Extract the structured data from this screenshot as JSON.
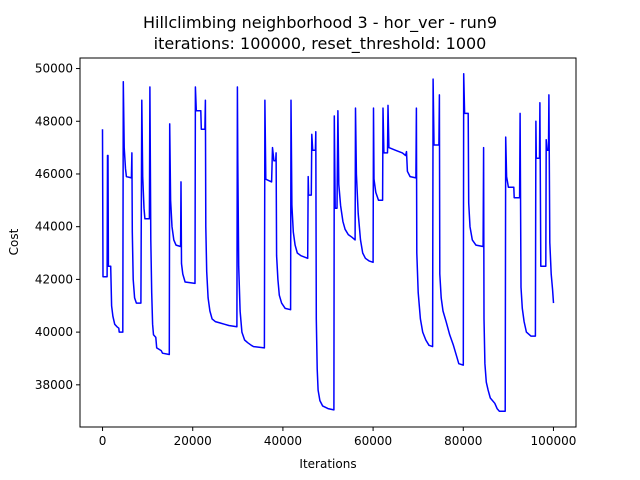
{
  "chart_data": {
    "type": "line",
    "title_line1": "Hillclimbing neighborhood 3 - hor_ver - run9",
    "title_line2": "iterations: 100000, reset_threshold: 1000",
    "xlabel": "Iterations",
    "ylabel": "Cost",
    "xlim": [
      -5000,
      105000
    ],
    "ylim": [
      36400,
      50400
    ],
    "xticks": [
      0,
      20000,
      40000,
      60000,
      80000,
      100000
    ],
    "xtick_labels": [
      "0",
      "20000",
      "40000",
      "60000",
      "80000",
      "100000"
    ],
    "yticks": [
      38000,
      40000,
      42000,
      44000,
      46000,
      48000,
      50000
    ],
    "ytick_labels": [
      "38000",
      "40000",
      "42000",
      "44000",
      "46000",
      "48000",
      "50000"
    ],
    "grid": false,
    "series": [
      {
        "color": "#0000ff",
        "points": [
          [
            0,
            47700
          ],
          [
            100,
            42100
          ],
          [
            1000,
            42100
          ],
          [
            1100,
            46700
          ],
          [
            1200,
            46700
          ],
          [
            1300,
            42500
          ],
          [
            1800,
            42500
          ],
          [
            2000,
            41000
          ],
          [
            2300,
            40600
          ],
          [
            2700,
            40300
          ],
          [
            3200,
            40200
          ],
          [
            3600,
            40150
          ],
          [
            3700,
            40000
          ],
          [
            4500,
            40000
          ],
          [
            4600,
            49500
          ],
          [
            4800,
            47000
          ],
          [
            5100,
            46200
          ],
          [
            5300,
            45900
          ],
          [
            6400,
            45850
          ],
          [
            6500,
            46800
          ],
          [
            6600,
            43800
          ],
          [
            6800,
            42000
          ],
          [
            7100,
            41300
          ],
          [
            7500,
            41100
          ],
          [
            8500,
            41100
          ],
          [
            8700,
            48800
          ],
          [
            8900,
            45900
          ],
          [
            9200,
            44700
          ],
          [
            9400,
            44300
          ],
          [
            10400,
            44300
          ],
          [
            10500,
            49300
          ],
          [
            10700,
            43500
          ],
          [
            10900,
            41500
          ],
          [
            11100,
            40300
          ],
          [
            11300,
            39900
          ],
          [
            11800,
            39800
          ],
          [
            12000,
            39400
          ],
          [
            13000,
            39300
          ],
          [
            13300,
            39200
          ],
          [
            14800,
            39150
          ],
          [
            14900,
            47900
          ],
          [
            15100,
            45000
          ],
          [
            15400,
            44000
          ],
          [
            15800,
            43500
          ],
          [
            16300,
            43300
          ],
          [
            17300,
            43250
          ],
          [
            17400,
            45700
          ],
          [
            17500,
            42600
          ],
          [
            17800,
            42200
          ],
          [
            18300,
            41900
          ],
          [
            20500,
            41850
          ],
          [
            20600,
            49300
          ],
          [
            20800,
            48400
          ],
          [
            21800,
            48400
          ],
          [
            21900,
            47700
          ],
          [
            22700,
            47700
          ],
          [
            22800,
            48800
          ],
          [
            22900,
            44000
          ],
          [
            23100,
            42300
          ],
          [
            23400,
            41300
          ],
          [
            23800,
            40800
          ],
          [
            24300,
            40500
          ],
          [
            25000,
            40400
          ],
          [
            26000,
            40350
          ],
          [
            27000,
            40300
          ],
          [
            28000,
            40250
          ],
          [
            29800,
            40200
          ],
          [
            29900,
            49300
          ],
          [
            30000,
            46500
          ],
          [
            30200,
            42500
          ],
          [
            30500,
            40800
          ],
          [
            30900,
            40000
          ],
          [
            31500,
            39700
          ],
          [
            32200,
            39600
          ],
          [
            33000,
            39500
          ],
          [
            33500,
            39450
          ],
          [
            35900,
            39400
          ],
          [
            36000,
            48800
          ],
          [
            36200,
            45800
          ],
          [
            37500,
            45700
          ],
          [
            37700,
            47000
          ],
          [
            38000,
            46500
          ],
          [
            38400,
            46500
          ],
          [
            38500,
            46800
          ],
          [
            38600,
            42900
          ],
          [
            38900,
            42000
          ],
          [
            39200,
            41400
          ],
          [
            39700,
            41100
          ],
          [
            40500,
            40900
          ],
          [
            41700,
            40850
          ],
          [
            41800,
            48800
          ],
          [
            42000,
            44800
          ],
          [
            42300,
            43800
          ],
          [
            42700,
            43300
          ],
          [
            43200,
            43000
          ],
          [
            44000,
            42900
          ],
          [
            45500,
            42800
          ],
          [
            45600,
            45900
          ],
          [
            45700,
            45200
          ],
          [
            46300,
            45200
          ],
          [
            46400,
            47500
          ],
          [
            46600,
            46900
          ],
          [
            47200,
            46900
          ],
          [
            47300,
            47600
          ],
          [
            47400,
            40500
          ],
          [
            47600,
            38600
          ],
          [
            47800,
            37800
          ],
          [
            48200,
            37400
          ],
          [
            48800,
            37200
          ],
          [
            50000,
            37100
          ],
          [
            51300,
            37050
          ],
          [
            51400,
            48200
          ],
          [
            51600,
            44700
          ],
          [
            52000,
            44700
          ],
          [
            52200,
            48400
          ],
          [
            52400,
            45600
          ],
          [
            52800,
            44800
          ],
          [
            53300,
            44200
          ],
          [
            53800,
            43900
          ],
          [
            54500,
            43700
          ],
          [
            55300,
            43600
          ],
          [
            56000,
            43500
          ],
          [
            56100,
            48500
          ],
          [
            56300,
            46000
          ],
          [
            56700,
            44500
          ],
          [
            57200,
            43500
          ],
          [
            57700,
            43000
          ],
          [
            58300,
            42800
          ],
          [
            59100,
            42700
          ],
          [
            60000,
            42650
          ],
          [
            60100,
            48500
          ],
          [
            60200,
            45800
          ],
          [
            60600,
            45300
          ],
          [
            61200,
            45000
          ],
          [
            62100,
            45000
          ],
          [
            62200,
            48500
          ],
          [
            62400,
            46800
          ],
          [
            63200,
            46800
          ],
          [
            63300,
            48600
          ],
          [
            63500,
            47000
          ],
          [
            65000,
            46900
          ],
          [
            66500,
            46800
          ],
          [
            67200,
            46700
          ],
          [
            67400,
            46850
          ],
          [
            67600,
            46100
          ],
          [
            68200,
            45900
          ],
          [
            69500,
            45850
          ],
          [
            69600,
            48500
          ],
          [
            69700,
            43000
          ],
          [
            70000,
            41500
          ],
          [
            70500,
            40500
          ],
          [
            71000,
            40000
          ],
          [
            71700,
            39700
          ],
          [
            72400,
            39500
          ],
          [
            73200,
            39450
          ],
          [
            73300,
            49600
          ],
          [
            73500,
            47100
          ],
          [
            74600,
            47100
          ],
          [
            74700,
            49000
          ],
          [
            74800,
            42200
          ],
          [
            75100,
            41300
          ],
          [
            75500,
            40800
          ],
          [
            76200,
            40400
          ],
          [
            77000,
            39900
          ],
          [
            77800,
            39500
          ],
          [
            78500,
            39100
          ],
          [
            79000,
            38800
          ],
          [
            80000,
            38750
          ],
          [
            80100,
            49800
          ],
          [
            80300,
            48300
          ],
          [
            81100,
            48300
          ],
          [
            81200,
            44900
          ],
          [
            81500,
            44000
          ],
          [
            82000,
            43500
          ],
          [
            82800,
            43300
          ],
          [
            84400,
            43250
          ],
          [
            84500,
            47000
          ],
          [
            84600,
            40500
          ],
          [
            84800,
            38800
          ],
          [
            85100,
            38100
          ],
          [
            85500,
            37800
          ],
          [
            86000,
            37500
          ],
          [
            87000,
            37300
          ],
          [
            87500,
            37100
          ],
          [
            88000,
            37000
          ],
          [
            89300,
            37000
          ],
          [
            89400,
            47400
          ],
          [
            89600,
            45900
          ],
          [
            90000,
            45500
          ],
          [
            91200,
            45500
          ],
          [
            91300,
            45100
          ],
          [
            92500,
            45100
          ],
          [
            92600,
            48300
          ],
          [
            92800,
            41700
          ],
          [
            93100,
            40900
          ],
          [
            93500,
            40400
          ],
          [
            94000,
            40000
          ],
          [
            95000,
            39850
          ],
          [
            96000,
            39850
          ],
          [
            96100,
            48000
          ],
          [
            96200,
            46600
          ],
          [
            96900,
            46600
          ],
          [
            97000,
            48700
          ],
          [
            97200,
            42500
          ],
          [
            98300,
            42500
          ],
          [
            98400,
            47300
          ],
          [
            98600,
            46900
          ],
          [
            98900,
            46900
          ],
          [
            99000,
            49000
          ],
          [
            99200,
            43400
          ],
          [
            99500,
            42200
          ],
          [
            99800,
            41600
          ],
          [
            100000,
            41100
          ]
        ]
      }
    ]
  }
}
